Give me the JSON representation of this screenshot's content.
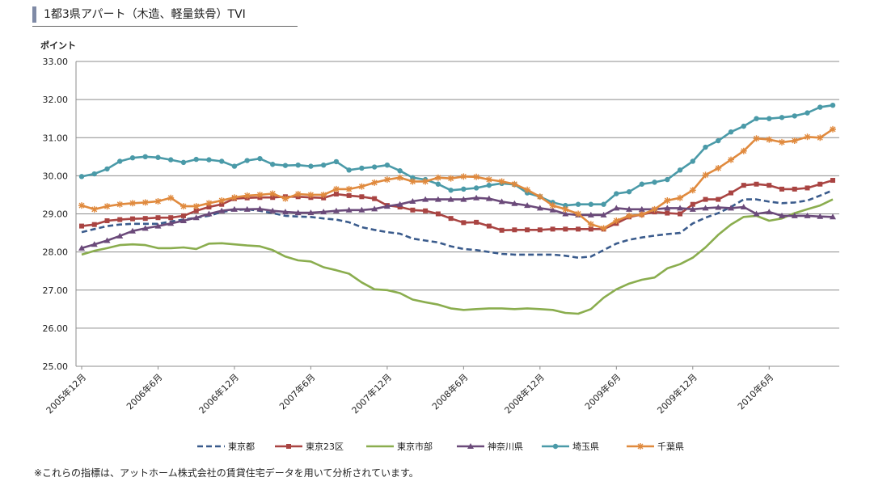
{
  "title": "1都3県アパート（木造、軽量鉄骨）TVI",
  "note": "※これらの指標は、アットホーム株式会社の賃貸住宅データを用いて分析されています。",
  "chart_data": {
    "type": "line",
    "ylabel": "ポイント",
    "ylim": [
      25,
      33
    ],
    "yticks": [
      "25.00",
      "26.00",
      "27.00",
      "28.00",
      "29.00",
      "30.00",
      "31.00",
      "32.00",
      "33.00"
    ],
    "grid": true,
    "legend_position": "bottom",
    "x_tick_labels": [
      {
        "index": 0,
        "label": "2005年12月"
      },
      {
        "index": 6,
        "label": "2006年6月"
      },
      {
        "index": 12,
        "label": "2006年12月"
      },
      {
        "index": 18,
        "label": "2007年6月"
      },
      {
        "index": 24,
        "label": "2007年12月"
      },
      {
        "index": 30,
        "label": "2008年6月"
      },
      {
        "index": 36,
        "label": "2008年12月"
      },
      {
        "index": 42,
        "label": "2009年6月"
      },
      {
        "index": 48,
        "label": "2009年12月"
      },
      {
        "index": 54,
        "label": "2010年6月"
      }
    ],
    "series": [
      {
        "name": "東京都",
        "color": "#3a5b8c",
        "style": "dashed",
        "marker": "none",
        "values": [
          28.52,
          28.6,
          28.68,
          28.72,
          28.74,
          28.74,
          28.74,
          28.8,
          28.85,
          28.9,
          28.95,
          29.05,
          29.1,
          29.12,
          29.08,
          29.02,
          28.95,
          28.93,
          28.92,
          28.88,
          28.85,
          28.78,
          28.65,
          28.58,
          28.52,
          28.48,
          28.35,
          28.3,
          28.25,
          28.15,
          28.08,
          28.05,
          28.0,
          27.95,
          27.93,
          27.93,
          27.93,
          27.93,
          27.9,
          27.85,
          27.88,
          28.05,
          28.22,
          28.32,
          28.38,
          28.43,
          28.47,
          28.5,
          28.75,
          28.9,
          29.02,
          29.18,
          29.38,
          29.38,
          29.32,
          29.28,
          29.3,
          29.35,
          29.48,
          29.62
        ]
      },
      {
        "name": "東京23区",
        "color": "#a94442",
        "style": "solid",
        "marker": "square",
        "values": [
          28.68,
          28.72,
          28.82,
          28.85,
          28.87,
          28.88,
          28.9,
          28.9,
          28.95,
          29.08,
          29.18,
          29.25,
          29.4,
          29.42,
          29.43,
          29.43,
          29.45,
          29.45,
          29.43,
          29.42,
          29.52,
          29.48,
          29.45,
          29.4,
          29.22,
          29.18,
          29.1,
          29.08,
          29.0,
          28.88,
          28.77,
          28.78,
          28.68,
          28.57,
          28.58,
          28.58,
          28.58,
          28.6,
          28.6,
          28.6,
          28.6,
          28.6,
          28.75,
          28.92,
          28.98,
          29.05,
          29.02,
          29.0,
          29.25,
          29.38,
          29.38,
          29.55,
          29.75,
          29.78,
          29.75,
          29.65,
          29.65,
          29.68,
          29.78,
          29.88
        ]
      },
      {
        "name": "東京市部",
        "color": "#8aad4e",
        "style": "solid",
        "marker": "none",
        "values": [
          27.93,
          28.03,
          28.1,
          28.18,
          28.2,
          28.18,
          28.1,
          28.1,
          28.12,
          28.08,
          28.22,
          28.23,
          28.2,
          28.17,
          28.15,
          28.05,
          27.88,
          27.78,
          27.75,
          27.6,
          27.52,
          27.43,
          27.2,
          27.02,
          27.0,
          26.92,
          26.75,
          26.68,
          26.62,
          26.52,
          26.48,
          26.5,
          26.52,
          26.52,
          26.5,
          26.52,
          26.5,
          26.48,
          26.4,
          26.38,
          26.5,
          26.8,
          27.02,
          27.17,
          27.27,
          27.33,
          27.57,
          27.68,
          27.85,
          28.12,
          28.45,
          28.72,
          28.92,
          28.95,
          28.82,
          28.88,
          29.02,
          29.12,
          29.22,
          29.38
        ]
      },
      {
        "name": "神奈川県",
        "color": "#6b4a7a",
        "style": "solid",
        "marker": "triangle",
        "values": [
          28.1,
          28.2,
          28.3,
          28.42,
          28.55,
          28.62,
          28.68,
          28.75,
          28.82,
          28.9,
          29.0,
          29.08,
          29.12,
          29.12,
          29.13,
          29.08,
          29.05,
          29.03,
          29.03,
          29.05,
          29.08,
          29.1,
          29.1,
          29.13,
          29.2,
          29.25,
          29.33,
          29.38,
          29.38,
          29.38,
          29.38,
          29.42,
          29.4,
          29.32,
          29.27,
          29.22,
          29.15,
          29.1,
          29.0,
          28.97,
          28.97,
          28.97,
          29.15,
          29.12,
          29.12,
          29.12,
          29.15,
          29.15,
          29.12,
          29.15,
          29.17,
          29.15,
          29.18,
          29.0,
          29.05,
          28.95,
          28.95,
          28.95,
          28.93,
          28.92
        ]
      },
      {
        "name": "埼玉県",
        "color": "#4a9aa8",
        "style": "solid",
        "marker": "circle",
        "values": [
          29.98,
          30.05,
          30.18,
          30.38,
          30.47,
          30.5,
          30.48,
          30.42,
          30.35,
          30.43,
          30.42,
          30.38,
          30.25,
          30.4,
          30.45,
          30.3,
          30.27,
          30.28,
          30.25,
          30.28,
          30.37,
          30.15,
          30.2,
          30.23,
          30.28,
          30.13,
          29.95,
          29.9,
          29.78,
          29.62,
          29.65,
          29.68,
          29.75,
          29.8,
          29.77,
          29.55,
          29.45,
          29.3,
          29.22,
          29.25,
          29.25,
          29.25,
          29.53,
          29.58,
          29.78,
          29.83,
          29.9,
          30.15,
          30.38,
          30.75,
          30.92,
          31.15,
          31.3,
          31.5,
          31.5,
          31.53,
          31.57,
          31.65,
          31.8,
          31.85
        ]
      },
      {
        "name": "千葉県",
        "color": "#e08a3e",
        "style": "solid",
        "marker": "star",
        "values": [
          29.22,
          29.12,
          29.2,
          29.25,
          29.28,
          29.3,
          29.33,
          29.42,
          29.2,
          29.2,
          29.28,
          29.35,
          29.43,
          29.48,
          29.5,
          29.53,
          29.4,
          29.52,
          29.5,
          29.5,
          29.65,
          29.65,
          29.72,
          29.82,
          29.9,
          29.95,
          29.85,
          29.85,
          29.95,
          29.93,
          29.98,
          29.97,
          29.9,
          29.85,
          29.78,
          29.63,
          29.45,
          29.22,
          29.12,
          29.0,
          28.73,
          28.62,
          28.82,
          28.95,
          28.98,
          29.12,
          29.35,
          29.42,
          29.62,
          30.02,
          30.2,
          30.42,
          30.65,
          30.98,
          30.95,
          30.88,
          30.92,
          31.02,
          31.0,
          31.22
        ]
      }
    ]
  }
}
